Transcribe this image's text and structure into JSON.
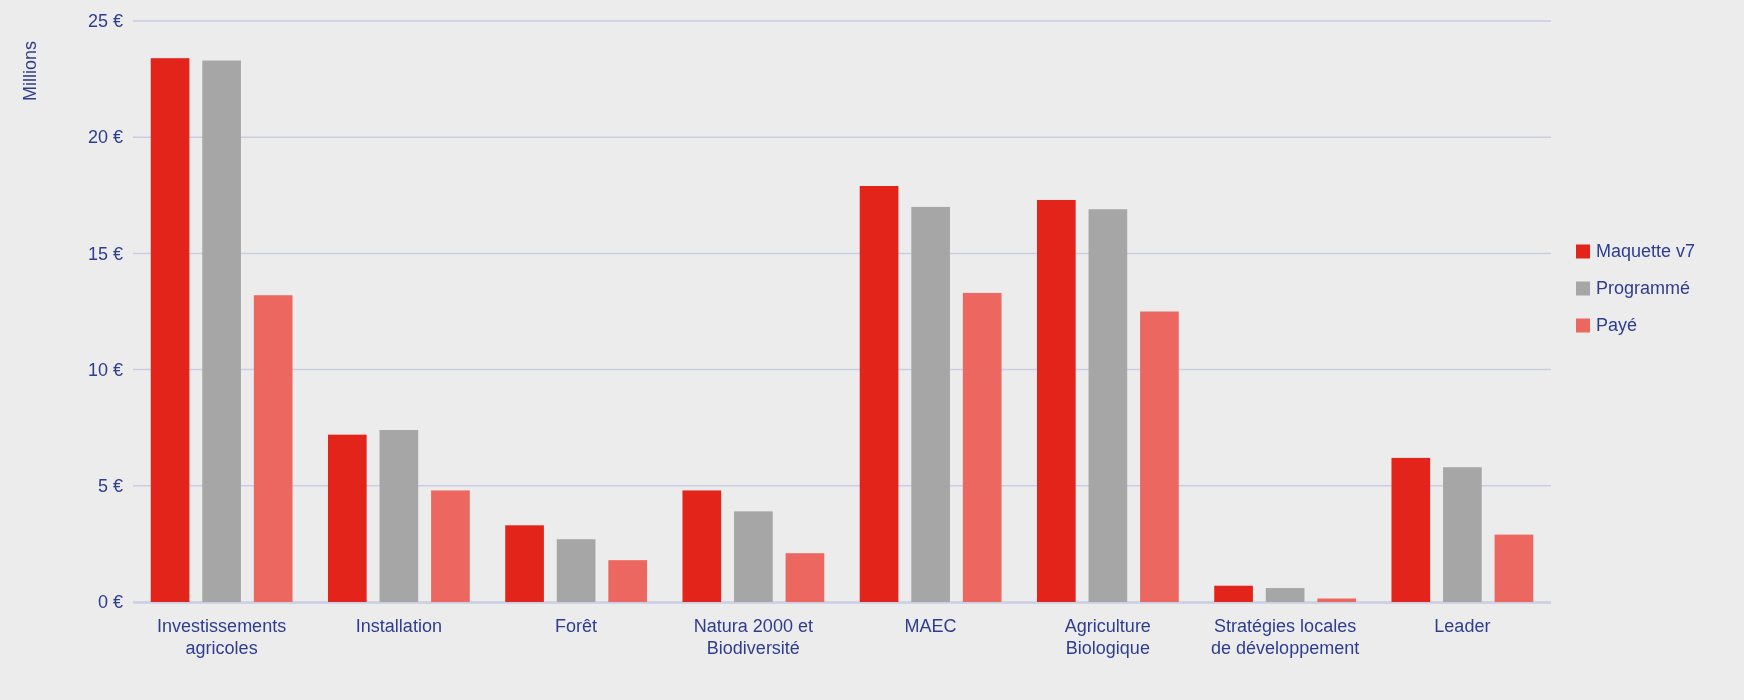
{
  "chart_data": {
    "type": "bar",
    "ylabel": "Millions",
    "categories": [
      "Investissements agricoles",
      "Installation",
      "Forêt",
      "Natura 2000 et Biodiversité",
      "MAEC",
      "Agriculture Biologique",
      "Stratégies locales de développement",
      "Leader"
    ],
    "series": [
      {
        "name": "Maquette v7",
        "color": "#e3241b",
        "values": [
          23.4,
          7.2,
          3.3,
          4.8,
          17.9,
          17.3,
          0.7,
          6.2
        ]
      },
      {
        "name": "Programmé",
        "color": "#a6a6a6",
        "values": [
          23.3,
          7.4,
          2.7,
          3.9,
          17.0,
          16.9,
          0.6,
          5.8
        ]
      },
      {
        "name": "Payé",
        "color": "#ec6760",
        "values": [
          13.2,
          4.8,
          1.8,
          2.1,
          13.3,
          12.5,
          0.15,
          2.9
        ]
      }
    ],
    "ylim": [
      0,
      25
    ],
    "yticks": [
      {
        "value": 0,
        "label": "0 €"
      },
      {
        "value": 5,
        "label": "5 €"
      },
      {
        "value": 10,
        "label": "10 €"
      },
      {
        "value": 15,
        "label": "15 €"
      },
      {
        "value": 20,
        "label": "20 €"
      },
      {
        "value": 25,
        "label": "25 €"
      }
    ],
    "grid": "y",
    "legend": "right"
  }
}
